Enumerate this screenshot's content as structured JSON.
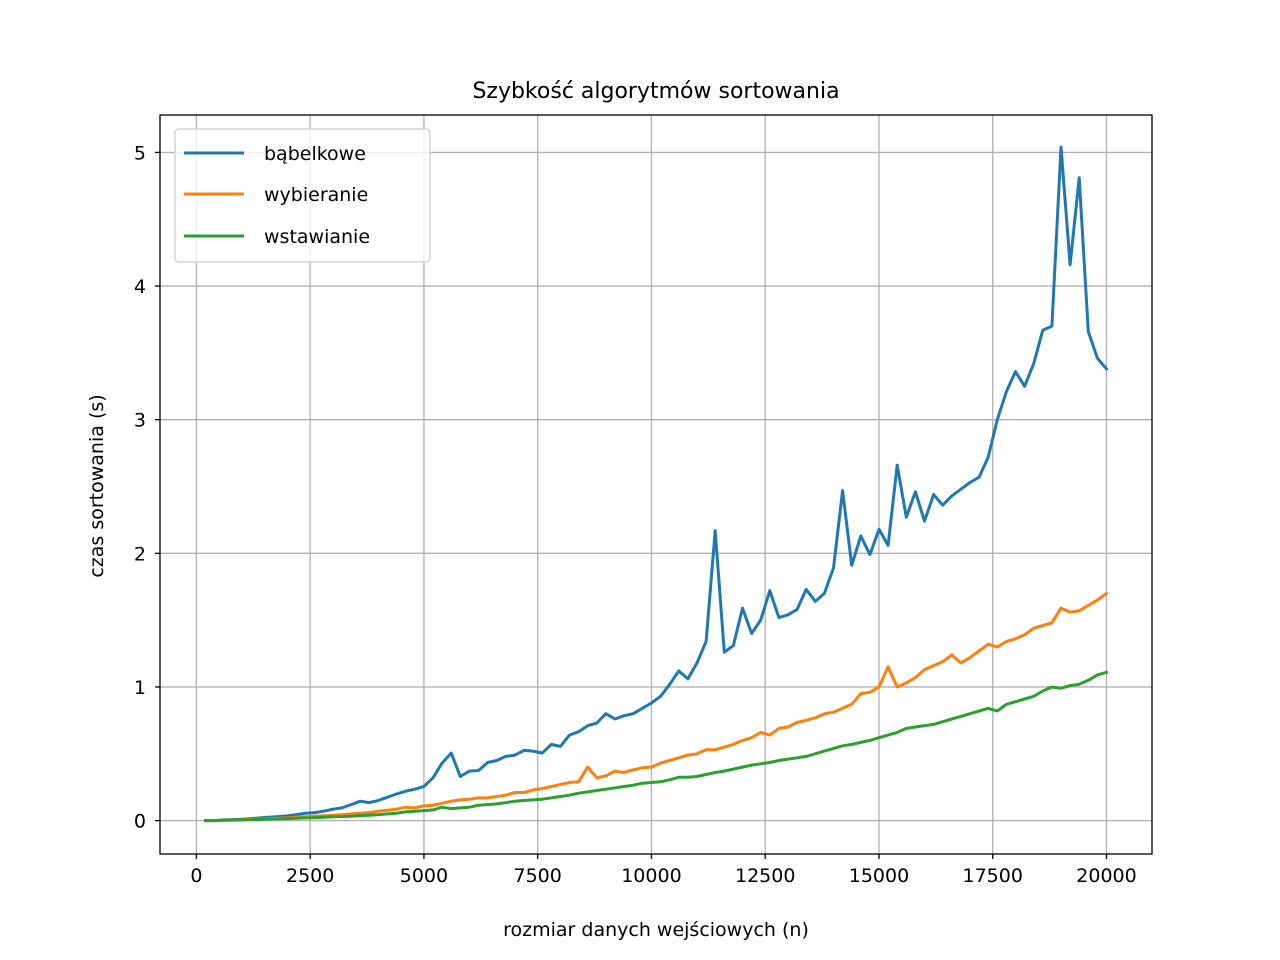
{
  "chart_data": {
    "type": "line",
    "title": "Szybkość algorytmów sortowania",
    "xlabel": "rozmiar danych wejściowych (n)",
    "ylabel": "czas sortowania (s)",
    "xlim": [
      -800,
      21000
    ],
    "ylim": [
      -0.25,
      5.28
    ],
    "x_ticks": [
      0,
      2500,
      5000,
      7500,
      10000,
      12500,
      15000,
      17500,
      20000
    ],
    "x_tick_labels": [
      "0",
      "2500",
      "5000",
      "7500",
      "10000",
      "12500",
      "15000",
      "17500",
      "20000"
    ],
    "y_ticks": [
      0,
      1,
      2,
      3,
      4,
      5
    ],
    "y_tick_labels": [
      "0",
      "1",
      "2",
      "3",
      "4",
      "5"
    ],
    "grid": true,
    "legend_position": "upper-left",
    "x": [
      200,
      400,
      600,
      800,
      1000,
      1200,
      1400,
      1600,
      1800,
      2000,
      2200,
      2400,
      2600,
      2800,
      3000,
      3200,
      3400,
      3600,
      3800,
      4000,
      4200,
      4400,
      4600,
      4800,
      5000,
      5200,
      5400,
      5600,
      5800,
      6000,
      6200,
      6400,
      6600,
      6800,
      7000,
      7200,
      7400,
      7600,
      7800,
      8000,
      8200,
      8400,
      8600,
      8800,
      9000,
      9200,
      9400,
      9600,
      9800,
      10000,
      10200,
      10400,
      10600,
      10800,
      11000,
      11200,
      11400,
      11600,
      11800,
      12000,
      12200,
      12400,
      12600,
      12800,
      13000,
      13200,
      13400,
      13600,
      13800,
      14000,
      14200,
      14400,
      14600,
      14800,
      15000,
      15200,
      15400,
      15600,
      15800,
      16000,
      16200,
      16400,
      16600,
      16800,
      17000,
      17200,
      17400,
      17600,
      17800,
      18000,
      18200,
      18400,
      18600,
      18800,
      19000,
      19200,
      19400,
      19600,
      19800,
      20000
    ],
    "series": [
      {
        "name": "bąbelkowe",
        "color": "#1f77b4",
        "values": [
          0.0,
          0.0,
          0.005,
          0.008,
          0.01,
          0.015,
          0.02,
          0.025,
          0.03,
          0.035,
          0.045,
          0.055,
          0.06,
          0.07,
          0.085,
          0.095,
          0.12,
          0.145,
          0.135,
          0.15,
          0.175,
          0.2,
          0.22,
          0.235,
          0.255,
          0.32,
          0.43,
          0.505,
          0.33,
          0.37,
          0.375,
          0.435,
          0.45,
          0.48,
          0.49,
          0.525,
          0.52,
          0.505,
          0.57,
          0.555,
          0.64,
          0.665,
          0.71,
          0.73,
          0.8,
          0.76,
          0.785,
          0.8,
          0.84,
          0.88,
          0.93,
          1.02,
          1.12,
          1.06,
          1.18,
          1.34,
          2.17,
          1.26,
          1.31,
          1.59,
          1.4,
          1.5,
          1.72,
          1.52,
          1.54,
          1.58,
          1.73,
          1.64,
          1.7,
          1.89,
          2.47,
          1.91,
          2.13,
          1.99,
          2.18,
          2.06,
          2.66,
          2.27,
          2.46,
          2.24,
          2.44,
          2.36,
          2.43,
          2.48,
          2.53,
          2.57,
          2.72,
          3.0,
          3.21,
          3.36,
          3.25,
          3.42,
          3.67,
          3.7,
          5.04,
          4.16,
          4.81,
          3.66,
          3.46,
          3.38
        ]
      },
      {
        "name": "wybieranie",
        "color": "#ff7f0e",
        "values": [
          0.0,
          0.0,
          0.003,
          0.005,
          0.007,
          0.01,
          0.012,
          0.015,
          0.018,
          0.02,
          0.025,
          0.028,
          0.032,
          0.036,
          0.04,
          0.045,
          0.05,
          0.055,
          0.06,
          0.07,
          0.078,
          0.085,
          0.1,
          0.095,
          0.11,
          0.115,
          0.13,
          0.145,
          0.155,
          0.16,
          0.17,
          0.17,
          0.18,
          0.19,
          0.21,
          0.21,
          0.23,
          0.24,
          0.255,
          0.27,
          0.285,
          0.29,
          0.4,
          0.32,
          0.335,
          0.37,
          0.36,
          0.38,
          0.395,
          0.4,
          0.43,
          0.45,
          0.47,
          0.49,
          0.5,
          0.53,
          0.53,
          0.55,
          0.57,
          0.6,
          0.62,
          0.66,
          0.64,
          0.69,
          0.7,
          0.735,
          0.75,
          0.77,
          0.8,
          0.81,
          0.84,
          0.87,
          0.95,
          0.96,
          1.0,
          1.15,
          1.0,
          1.03,
          1.07,
          1.13,
          1.16,
          1.19,
          1.24,
          1.18,
          1.22,
          1.27,
          1.32,
          1.3,
          1.34,
          1.36,
          1.39,
          1.44,
          1.46,
          1.48,
          1.59,
          1.56,
          1.57,
          1.61,
          1.65,
          1.7
        ]
      },
      {
        "name": "wstawianie",
        "color": "#2ca02c",
        "values": [
          0.0,
          0.0,
          0.002,
          0.004,
          0.005,
          0.007,
          0.009,
          0.011,
          0.013,
          0.015,
          0.017,
          0.02,
          0.022,
          0.025,
          0.028,
          0.03,
          0.033,
          0.037,
          0.04,
          0.045,
          0.05,
          0.055,
          0.065,
          0.07,
          0.075,
          0.08,
          0.1,
          0.09,
          0.095,
          0.1,
          0.115,
          0.12,
          0.125,
          0.135,
          0.145,
          0.15,
          0.155,
          0.16,
          0.17,
          0.18,
          0.19,
          0.205,
          0.215,
          0.225,
          0.235,
          0.245,
          0.255,
          0.265,
          0.28,
          0.285,
          0.29,
          0.305,
          0.325,
          0.325,
          0.33,
          0.345,
          0.36,
          0.37,
          0.385,
          0.4,
          0.415,
          0.425,
          0.435,
          0.45,
          0.46,
          0.47,
          0.48,
          0.5,
          0.52,
          0.54,
          0.56,
          0.57,
          0.585,
          0.6,
          0.62,
          0.64,
          0.66,
          0.69,
          0.7,
          0.71,
          0.72,
          0.74,
          0.76,
          0.78,
          0.8,
          0.82,
          0.84,
          0.82,
          0.87,
          0.89,
          0.91,
          0.93,
          0.97,
          1.0,
          0.99,
          1.01,
          1.02,
          1.05,
          1.09,
          1.11
        ]
      }
    ]
  }
}
